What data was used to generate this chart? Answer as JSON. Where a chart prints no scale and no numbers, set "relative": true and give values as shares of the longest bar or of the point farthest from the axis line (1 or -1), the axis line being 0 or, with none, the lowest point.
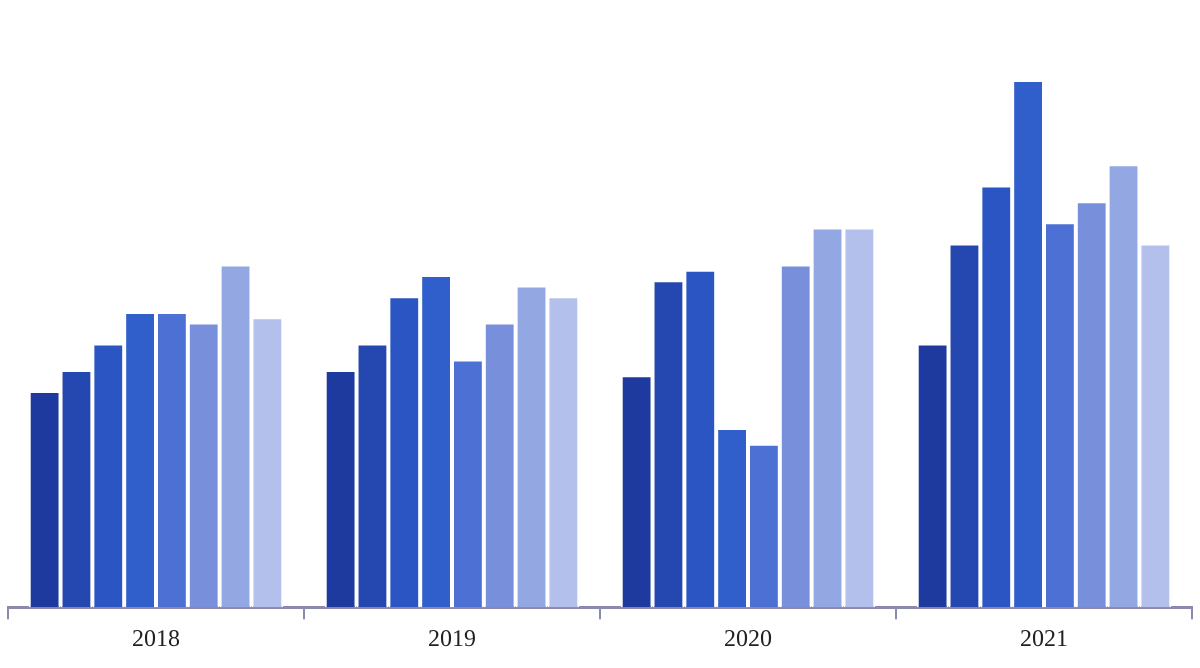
{
  "chart_data": {
    "type": "bar",
    "relative": true,
    "categories": [
      "2018",
      "2019",
      "2020",
      "2021"
    ],
    "legend": false,
    "grid": false,
    "series": [
      {
        "color": "#1f3a9e",
        "values": [
          0.41,
          0.45,
          0.44,
          0.5
        ]
      },
      {
        "color": "#2447b0",
        "values": [
          0.45,
          0.5,
          0.62,
          0.69
        ]
      },
      {
        "color": "#2a55c3",
        "values": [
          0.5,
          0.59,
          0.64,
          0.8
        ]
      },
      {
        "color": "#305fcc",
        "values": [
          0.56,
          0.63,
          0.34,
          1
        ]
      },
      {
        "color": "#4c70d4",
        "values": [
          0.56,
          0.47,
          0.31,
          0.73
        ]
      },
      {
        "color": "#7890dc",
        "values": [
          0.54,
          0.54,
          0.65,
          0.77
        ]
      },
      {
        "color": "#93a8e2",
        "values": [
          0.65,
          0.61,
          0.72,
          0.84
        ]
      },
      {
        "color": "#b3c0eb",
        "values": [
          0.55,
          0.59,
          0.72,
          0.69
        ]
      }
    ]
  }
}
